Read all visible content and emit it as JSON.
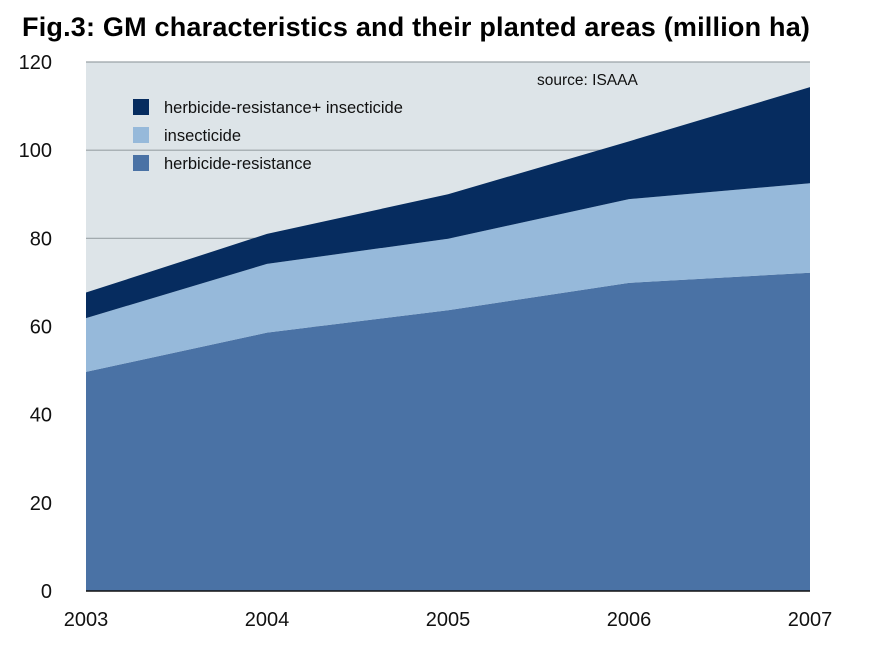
{
  "chart_data": {
    "type": "area",
    "stacked": true,
    "title": "Fig.3: GM characteristics and their planted areas (million ha)",
    "source": "source: ISAAA",
    "categories": [
      "2003",
      "2004",
      "2005",
      "2006",
      "2007"
    ],
    "ylim": [
      0,
      120
    ],
    "yticks": [
      "0",
      "20",
      "40",
      "60",
      "80",
      "100",
      "120"
    ],
    "ytick_values": [
      0,
      20,
      40,
      60,
      80,
      100,
      120
    ],
    "grid": true,
    "legend_position": "top-left",
    "xlabel": "",
    "ylabel": "",
    "series": [
      {
        "name": "herbicide-resistance",
        "values": [
          49.7,
          58.6,
          63.7,
          69.9,
          72.2
        ],
        "color": "#4a72a5"
      },
      {
        "name": "insecticide",
        "values": [
          12.2,
          15.6,
          16.2,
          19.0,
          20.3
        ],
        "color": "#96b9da"
      },
      {
        "name": "herbicide-resistance+ insecticide",
        "values": [
          5.8,
          6.8,
          10.1,
          13.1,
          21.8
        ],
        "color": "#062c5f"
      }
    ],
    "legend_order": [
      {
        "label": "herbicide-resistance+ insecticide",
        "color": "#062c5f"
      },
      {
        "label": "insecticide",
        "color": "#96b9da"
      },
      {
        "label": "herbicide-resistance",
        "color": "#4a72a5"
      }
    ],
    "plot_background": "#dde4e8"
  }
}
